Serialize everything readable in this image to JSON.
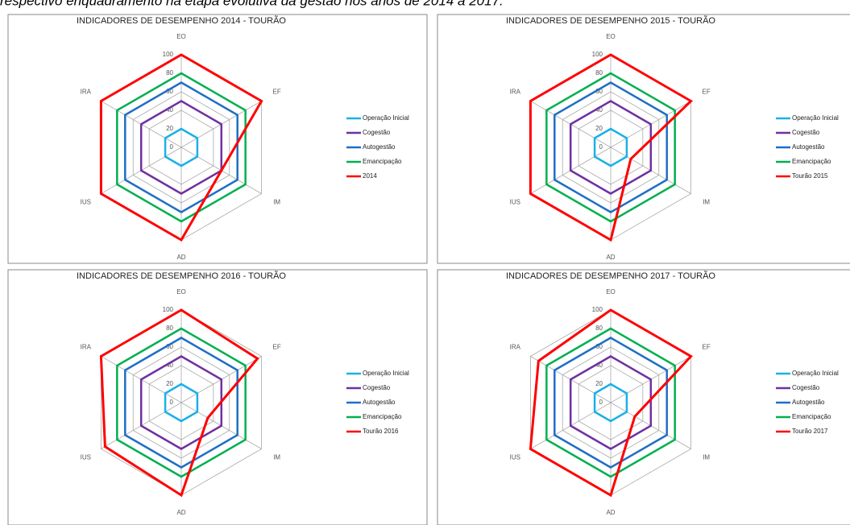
{
  "caption": "respectivo enquadramento na etapa evolutiva da gestão nos anos de 2014 a 2017.",
  "chart_data": [
    {
      "type": "radar",
      "title": "INDICADORES DE DESEMPENHO 2014 - TOURÃO",
      "categories": [
        "EO",
        "EF",
        "IM",
        "AD",
        "IUS",
        "IRA"
      ],
      "ylim": [
        0,
        100
      ],
      "yticks": [
        0,
        20,
        40,
        60,
        80,
        100
      ],
      "grid": true,
      "series": [
        {
          "name": "Operação Inicial",
          "color": "#1ab0e8",
          "values": [
            20,
            20,
            20,
            20,
            20,
            20
          ]
        },
        {
          "name": "Cogestão",
          "color": "#7030a0",
          "values": [
            50,
            50,
            50,
            50,
            50,
            50
          ]
        },
        {
          "name": "Autogestão",
          "color": "#1f6fc5",
          "values": [
            70,
            70,
            70,
            70,
            70,
            70
          ]
        },
        {
          "name": "Emancipação",
          "color": "#00b050",
          "values": [
            80,
            80,
            80,
            80,
            80,
            80
          ]
        },
        {
          "name": "2014",
          "color": "#ff0000",
          "values": [
            100,
            100,
            50,
            100,
            100,
            100
          ]
        }
      ]
    },
    {
      "type": "radar",
      "title": "INDICADORES DE DESEMPENHO 2015 - TOURÃO",
      "categories": [
        "EO",
        "EF",
        "IM",
        "AD",
        "IUS",
        "IRA"
      ],
      "ylim": [
        0,
        100
      ],
      "yticks": [
        0,
        20,
        40,
        60,
        80,
        100
      ],
      "grid": true,
      "series": [
        {
          "name": "Operação Inicial",
          "color": "#1ab0e8",
          "values": [
            20,
            20,
            20,
            20,
            20,
            20
          ]
        },
        {
          "name": "Cogestão",
          "color": "#7030a0",
          "values": [
            50,
            50,
            50,
            50,
            50,
            50
          ]
        },
        {
          "name": "Autogestão",
          "color": "#1f6fc5",
          "values": [
            70,
            70,
            70,
            70,
            70,
            70
          ]
        },
        {
          "name": "Emancipação",
          "color": "#00b050",
          "values": [
            80,
            80,
            80,
            80,
            80,
            80
          ]
        },
        {
          "name": "Tourão 2015",
          "color": "#ff0000",
          "values": [
            100,
            100,
            25,
            100,
            100,
            100
          ]
        }
      ]
    },
    {
      "type": "radar",
      "title": "INDICADORES DE DESEMPENHO 2016 - TOURÃO",
      "categories": [
        "EO",
        "EF",
        "IM",
        "AD",
        "IUS",
        "IRA"
      ],
      "ylim": [
        0,
        100
      ],
      "yticks": [
        0,
        20,
        40,
        60,
        80,
        100
      ],
      "grid": true,
      "series": [
        {
          "name": "Operação Inicial",
          "color": "#1ab0e8",
          "values": [
            20,
            20,
            20,
            20,
            20,
            20
          ]
        },
        {
          "name": "Cogestão",
          "color": "#7030a0",
          "values": [
            50,
            50,
            50,
            50,
            50,
            50
          ]
        },
        {
          "name": "Autogestão",
          "color": "#1f6fc5",
          "values": [
            70,
            70,
            70,
            70,
            70,
            70
          ]
        },
        {
          "name": "Emancipação",
          "color": "#00b050",
          "values": [
            80,
            80,
            80,
            80,
            80,
            80
          ]
        },
        {
          "name": "Tourão 2016",
          "color": "#ff0000",
          "values": [
            100,
            95,
            33,
            100,
            95,
            100
          ]
        }
      ]
    },
    {
      "type": "radar",
      "title": "INDICADORES DE DESEMPENHO 2017 - TOURÃO",
      "categories": [
        "EO",
        "EF",
        "IM",
        "AD",
        "IUS",
        "IRA"
      ],
      "ylim": [
        0,
        100
      ],
      "yticks": [
        0,
        20,
        40,
        60,
        80,
        100
      ],
      "grid": true,
      "series": [
        {
          "name": "Operação Inicial",
          "color": "#1ab0e8",
          "values": [
            20,
            20,
            20,
            20,
            20,
            20
          ]
        },
        {
          "name": "Cogestão",
          "color": "#7030a0",
          "values": [
            50,
            50,
            50,
            50,
            50,
            50
          ]
        },
        {
          "name": "Autogestão",
          "color": "#1f6fc5",
          "values": [
            70,
            70,
            70,
            70,
            70,
            70
          ]
        },
        {
          "name": "Emancipação",
          "color": "#00b050",
          "values": [
            80,
            80,
            80,
            80,
            80,
            80
          ]
        },
        {
          "name": "Tourão 2017",
          "color": "#ff0000",
          "values": [
            100,
            100,
            30,
            100,
            100,
            90
          ]
        }
      ]
    }
  ]
}
